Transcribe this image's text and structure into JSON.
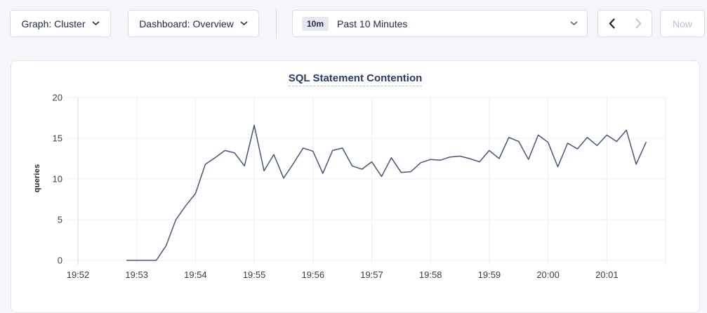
{
  "toolbar": {
    "graph_dropdown": {
      "label": "Graph: Cluster"
    },
    "dashboard_dropdown": {
      "label": "Dashboard: Overview"
    },
    "time_range": {
      "badge": "10m",
      "label": "Past 10 Minutes"
    },
    "now_label": "Now"
  },
  "colors": {
    "background": "#f4f6f9",
    "panel_border": "#e3e6ec",
    "toolbar_text": "#242b45",
    "disabled_text": "#c3c9d5",
    "title_color": "#2b3a64",
    "line_color": "#475672",
    "grid_color": "#ededf0",
    "axis_line_color": "#d8dade",
    "axis_text_color": "#3b3e45"
  },
  "chart_data": {
    "type": "line",
    "title": "SQL Statement Contention",
    "ylabel": "queries",
    "ylim": [
      0,
      20
    ],
    "yticks": [
      0,
      5,
      10,
      15,
      20
    ],
    "xticks": [
      "19:52",
      "19:53",
      "19:54",
      "19:55",
      "19:56",
      "19:57",
      "19:58",
      "19:59",
      "20:00",
      "20:01"
    ],
    "x_range_minutes": 10,
    "grid": true,
    "legend": "none",
    "series": [
      {
        "name": "queries",
        "start_time": "19:52:50",
        "interval_seconds": 10,
        "values": [
          0,
          0,
          0,
          0,
          1.8,
          5,
          6.7,
          8.2,
          11.8,
          12.6,
          13.5,
          13.2,
          11.6,
          16.6,
          11,
          13,
          10.1,
          11.9,
          13.8,
          13.4,
          10.7,
          13.5,
          13.8,
          11.6,
          11.2,
          12.1,
          10.3,
          12.6,
          10.8,
          10.9,
          12,
          12.4,
          12.3,
          12.7,
          12.8,
          12.5,
          12.1,
          13.5,
          12.5,
          15.1,
          14.6,
          12.4,
          15.4,
          14.5,
          11.5,
          14.4,
          13.7,
          15.1,
          14.1,
          15.4,
          14.6,
          16,
          11.8,
          14.5
        ]
      }
    ]
  }
}
